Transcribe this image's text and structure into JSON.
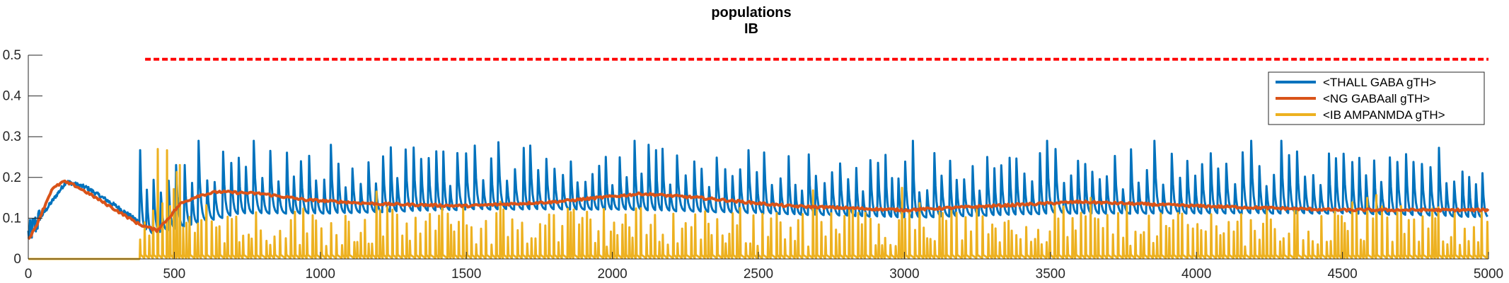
{
  "chart_data": {
    "type": "line",
    "title": "populations",
    "subtitle": "IB",
    "xlabel": "",
    "ylabel": "",
    "xlim": [
      0,
      5000
    ],
    "ylim": [
      0,
      0.5
    ],
    "xticks": [
      0,
      500,
      1000,
      1500,
      2000,
      2500,
      3000,
      3500,
      4000,
      4500,
      5000
    ],
    "yticks": [
      0,
      0.1,
      0.2,
      0.3,
      0.4,
      0.5
    ],
    "xtick_labels": [
      "0",
      "500",
      "1000",
      "1500",
      "2000",
      "2500",
      "3000",
      "3500",
      "4000",
      "4500",
      "5000"
    ],
    "ytick_labels": [
      "0",
      "0.1",
      "0.2",
      "0.3",
      "0.4",
      "0.5"
    ],
    "legend_position": "top-right",
    "grid": false,
    "series": [
      {
        "name": "<THALL GABA gTH>",
        "color": "#0072BD",
        "description": "oscillating trace, ~0.08-0.25 with spikes up to 0.29",
        "baseline": [
          [
            0,
            0.06
          ],
          [
            40,
            0.1
          ],
          [
            130,
            0.19
          ],
          [
            200,
            0.175
          ],
          [
            300,
            0.13
          ],
          [
            360,
            0.1
          ],
          [
            400,
            0.08
          ],
          [
            700,
            0.13
          ],
          [
            1000,
            0.13
          ],
          [
            1500,
            0.14
          ],
          [
            2000,
            0.14
          ],
          [
            2500,
            0.13
          ],
          [
            3000,
            0.12
          ],
          [
            3500,
            0.13
          ],
          [
            4000,
            0.13
          ],
          [
            4500,
            0.13
          ],
          [
            5000,
            0.12
          ]
        ],
        "peaks": [
          [
            100,
            0.2
          ],
          [
            1000,
            0.28
          ],
          [
            2280,
            0.29
          ],
          [
            3350,
            0.27
          ],
          [
            4550,
            0.26
          ],
          [
            5000,
            0.24
          ]
        ]
      },
      {
        "name": "<NG GABAall gTH>",
        "color": "#D95319",
        "description": "smooth trace",
        "points": [
          [
            0,
            0.05
          ],
          [
            20,
            0.07
          ],
          [
            50,
            0.12
          ],
          [
            80,
            0.17
          ],
          [
            120,
            0.19
          ],
          [
            160,
            0.18
          ],
          [
            220,
            0.155
          ],
          [
            300,
            0.12
          ],
          [
            380,
            0.085
          ],
          [
            440,
            0.07
          ],
          [
            480,
            0.1
          ],
          [
            520,
            0.135
          ],
          [
            580,
            0.155
          ],
          [
            650,
            0.165
          ],
          [
            800,
            0.16
          ],
          [
            950,
            0.145
          ],
          [
            1200,
            0.135
          ],
          [
            1500,
            0.13
          ],
          [
            1800,
            0.14
          ],
          [
            2100,
            0.16
          ],
          [
            2300,
            0.15
          ],
          [
            2600,
            0.13
          ],
          [
            3000,
            0.12
          ],
          [
            3300,
            0.13
          ],
          [
            3600,
            0.14
          ],
          [
            4000,
            0.13
          ],
          [
            4500,
            0.12
          ],
          [
            5000,
            0.12
          ]
        ]
      },
      {
        "name": "<IB AMPANMDA gTH>",
        "color": "#EDB120",
        "description": "near zero until ~380 ms, then spiking trace with peaks 0.05-0.18 (max 0.28 near 480)",
        "points": [
          [
            0,
            0.0
          ],
          [
            380,
            0.0
          ],
          [
            480,
            0.28
          ],
          [
            1000,
            0.12
          ],
          [
            2000,
            0.12
          ],
          [
            3000,
            0.12
          ],
          [
            4000,
            0.12
          ],
          [
            5000,
            0.1
          ]
        ]
      },
      {
        "name": "threshold",
        "color": "#FF0000",
        "style": "dashed",
        "in_legend": false,
        "points": [
          [
            400,
            0.49
          ],
          [
            5000,
            0.49
          ]
        ]
      }
    ]
  }
}
